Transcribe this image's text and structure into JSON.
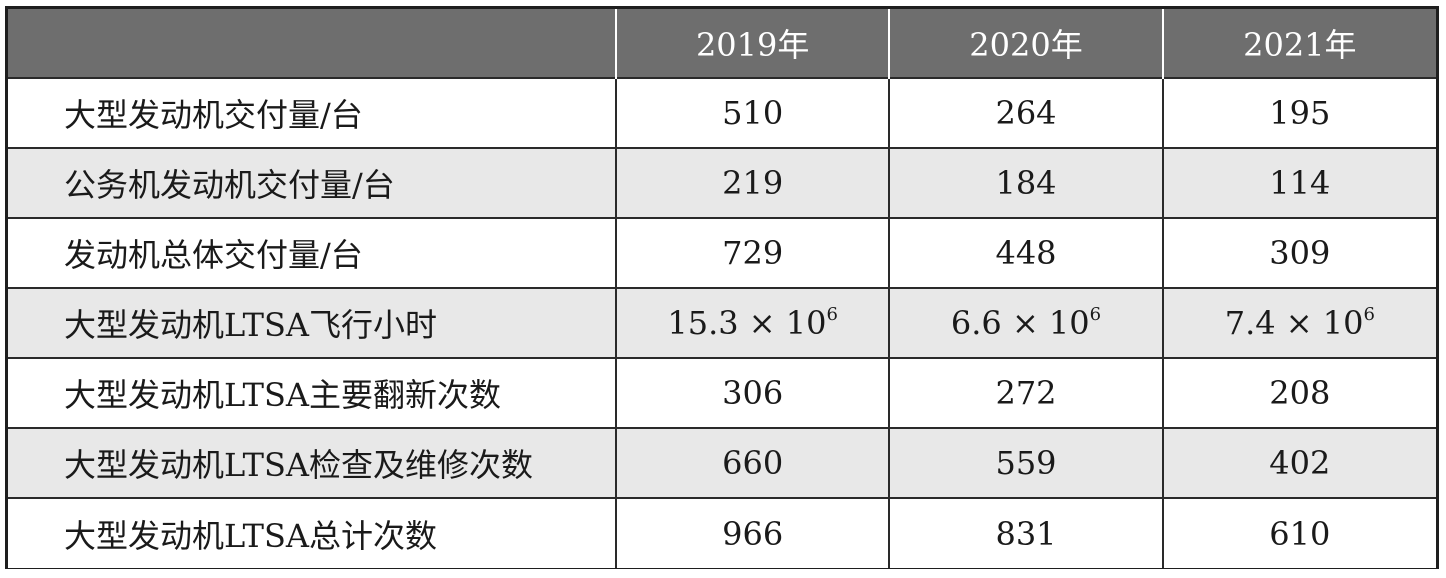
{
  "table": {
    "header": [
      "",
      "2019年",
      "2020年",
      "2021年"
    ],
    "rows": [
      {
        "label": "大型发动机交付量/台",
        "values": [
          "510",
          "264",
          "195"
        ]
      },
      {
        "label": "公务机发动机交付量/台",
        "values": [
          "219",
          "184",
          "114"
        ]
      },
      {
        "label": "发动机总体交付量/台",
        "values": [
          "729",
          "448",
          "309"
        ]
      },
      {
        "label": "大型发动机LTSA飞行小时",
        "values": [
          "15.3 × 10",
          "6.6 × 10",
          "7.4 × 10"
        ],
        "exponent": "6"
      },
      {
        "label": "大型发动机LTSA主要翻新次数",
        "values": [
          "306",
          "272",
          "208"
        ]
      },
      {
        "label": "大型发动机LTSA检查及维修次数",
        "values": [
          "660",
          "559",
          "402"
        ]
      },
      {
        "label": "大型发动机LTSA总计次数",
        "values": [
          "966",
          "831",
          "610"
        ]
      }
    ]
  },
  "colors": {
    "header_bg": "#6e6e6e",
    "shaded_row": "#e8e8e8",
    "border": "#2a2a2a"
  }
}
